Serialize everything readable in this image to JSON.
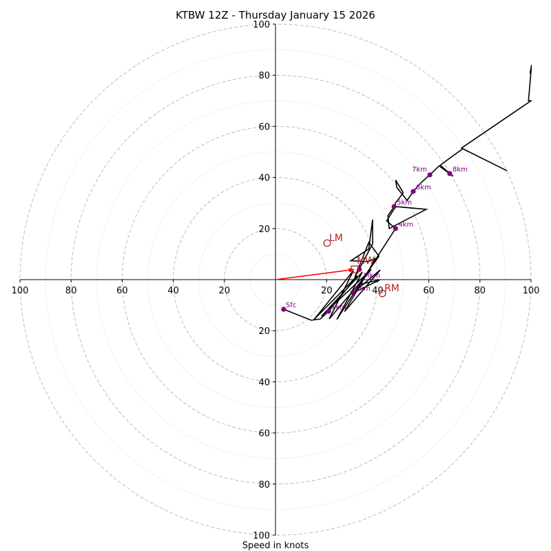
{
  "chart_data": {
    "type": "line",
    "subtype": "hodograph",
    "title": "KTBW 12Z - Thursday January 15 2026",
    "xlabel": "Speed in knots",
    "ylabel": "",
    "xlim": [
      -100,
      100
    ],
    "ylim": [
      -100,
      100
    ],
    "x_tick_labels": [
      "100",
      "80",
      "60",
      "40",
      "20",
      "20",
      "40",
      "60",
      "80",
      "100"
    ],
    "x_tick_values": [
      -100,
      -80,
      -60,
      -40,
      -20,
      20,
      40,
      60,
      80,
      100
    ],
    "y_tick_labels": [
      "100",
      "80",
      "60",
      "40",
      "20",
      "20",
      "40",
      "60",
      "80",
      "100"
    ],
    "y_tick_values": [
      100,
      80,
      60,
      40,
      20,
      -20,
      -40,
      -60,
      -80,
      -100
    ],
    "rings": {
      "major": [
        20,
        40,
        60,
        80,
        100
      ],
      "minor": [
        10,
        30,
        50,
        70,
        90
      ]
    },
    "grid": true,
    "series": [
      {
        "name": "hodograph",
        "color": "#000000",
        "u": [
          3.2,
          14.0,
          17.5,
          20.8,
          32.0,
          15.0,
          30.5,
          21.0,
          37.5,
          18.0,
          34.0,
          24.0,
          38.0,
          27.0,
          41.0,
          30.5,
          41.0,
          32.5,
          40.5,
          36.5,
          31.0,
          38.0,
          38.0,
          36.5,
          29.5,
          36.0,
          39.0,
          36.2,
          40.5,
          47.0,
          43.5,
          47.0,
          59.0,
          44.5,
          44.0,
          46.4,
          47.0,
          50.0,
          47.0,
          47.5,
          51.5,
          53.9,
          57.0,
          60.4,
          64.0,
          69.5,
          68.2,
          64.5,
          69.5,
          73.3,
          90.6,
          72.8,
          100.0,
          99.0,
          100.2,
          99.6
        ],
        "v": [
          -11.6,
          -15.9,
          -15.4,
          -12.4,
          1.5,
          -15.7,
          3.5,
          -15.4,
          4.0,
          -14.3,
          3.0,
          -15.6,
          6.0,
          -12.5,
          3.8,
          -5.1,
          0.0,
          -2.0,
          9.2,
          14.6,
          0.8,
          14.0,
          23.5,
          12.0,
          7.4,
          7.1,
          8.2,
          3.1,
          10.0,
          20.0,
          23.0,
          28.6,
          27.5,
          20.0,
          25.0,
          28.6,
          30.0,
          34.0,
          39.0,
          36.0,
          31.0,
          34.5,
          38.0,
          41.0,
          44.5,
          40.5,
          41.5,
          44.8,
          48.5,
          51.2,
          42.6,
          51.5,
          70.0,
          70.0,
          84.0,
          80.6
        ]
      }
    ],
    "height_markers": [
      {
        "label": "Sfc",
        "u": 3.2,
        "v": -11.6
      },
      {
        "label": "1km",
        "u": 20.8,
        "v": -12.4
      },
      {
        "label": "3km",
        "u": 30.2,
        "v": -5.1
      },
      {
        "label": "4km",
        "u": 47.0,
        "v": 20.0
      },
      {
        "label": "5km",
        "u": 46.4,
        "v": 28.6
      },
      {
        "label": "6km",
        "u": 53.9,
        "v": 34.5
      },
      {
        "label": "7km",
        "u": 60.4,
        "v": 41.0
      },
      {
        "label": "8km",
        "u": 68.2,
        "v": 41.5
      },
      {
        "label": "Mkm",
        "u": 32.8,
        "v": 4.0
      }
    ],
    "storm_motion": [
      {
        "label": "LM",
        "u": 20.2,
        "v": 14.3
      },
      {
        "label": "RM",
        "u": 41.8,
        "v": -5.4
      },
      {
        "label": "MW",
        "u": 31.0,
        "v": 4.0
      }
    ],
    "shear_vector": {
      "from_u": 0,
      "from_v": 0,
      "to_u": 31.0,
      "to_v": 4.0,
      "color": "#ff0000"
    },
    "colors": {
      "trace": "#000000",
      "height_marker": "#800080",
      "storm_motion": "#b22222",
      "arrow": "#ff0000",
      "ring": "#bbbbbb"
    }
  }
}
